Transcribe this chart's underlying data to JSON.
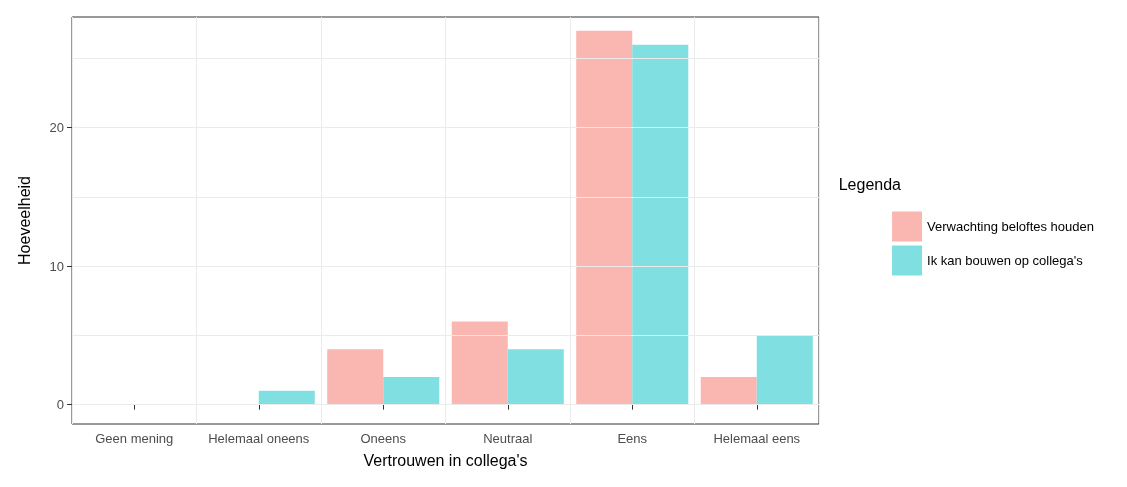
{
  "chart_data": {
    "type": "bar",
    "xlabel": "Vertrouwen in collega's",
    "ylabel": "Hoeveelheid",
    "legend_title": "Legenda",
    "categories": [
      "Geen mening",
      "Helemaal oneens",
      "Oneens",
      "Neutraal",
      "Eens",
      "Helemaal eens"
    ],
    "series": [
      {
        "name": "Verwachting beloftes houden",
        "color": "#fab7b2",
        "values": [
          0,
          null,
          4,
          6,
          27,
          2
        ]
      },
      {
        "name": "Ik kan bouwen op collega's",
        "color": "#7fdfe1",
        "values": [
          0,
          1,
          2,
          4,
          26,
          5
        ]
      }
    ],
    "ylim": [
      -1.4,
      28
    ],
    "yticks": [
      0,
      {
        "value": 5,
        "label": null
      },
      10,
      {
        "value": 15,
        "label": null
      },
      20,
      {
        "value": 25,
        "label": null
      }
    ],
    "grid": true,
    "legend": "right"
  }
}
